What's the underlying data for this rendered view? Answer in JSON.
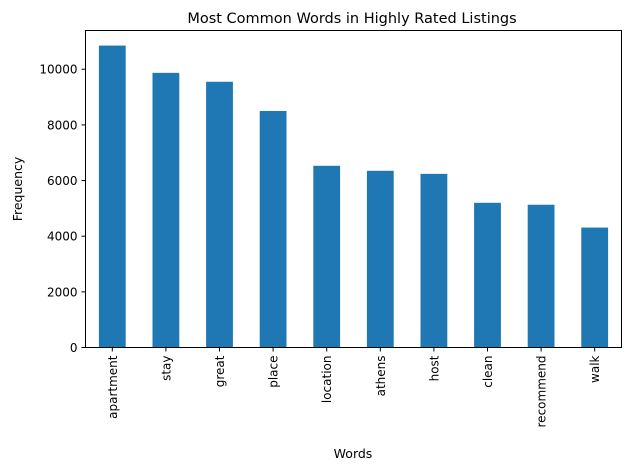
{
  "chart_data": {
    "type": "bar",
    "title": "Most Common Words in Highly Rated Listings",
    "xlabel": "Words",
    "ylabel": "Frequency",
    "categories": [
      "apartment",
      "stay",
      "great",
      "place",
      "location",
      "athens",
      "host",
      "clean",
      "recommend",
      "walk"
    ],
    "values": [
      10850,
      9870,
      9550,
      8500,
      6530,
      6350,
      6240,
      5200,
      5130,
      4310
    ],
    "ylim": [
      0,
      11392
    ],
    "yticks": [
      0,
      2000,
      4000,
      6000,
      8000,
      10000
    ],
    "ytick_labels": [
      "0",
      "2000",
      "4000",
      "6000",
      "8000",
      "10000"
    ],
    "grid": false,
    "legend": "none",
    "bar_color": "#1f77b4"
  }
}
